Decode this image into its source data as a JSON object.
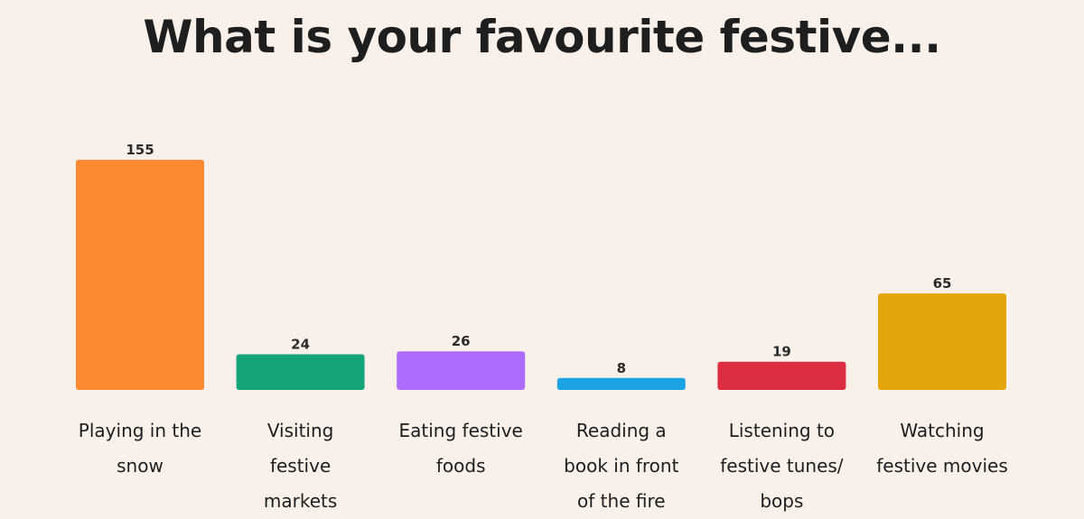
{
  "chart_data": {
    "type": "bar",
    "title": "What is your favourite festive...",
    "categories": [
      "Playing in the snow",
      "Visiting festive markets",
      "Eating festive foods",
      "Reading a book in front of the fire",
      "Listening to festive tunes/ bops",
      "Watching festive movies"
    ],
    "label_lines": [
      [
        "Playing in the",
        "snow"
      ],
      [
        "Visiting",
        "festive",
        "markets"
      ],
      [
        "Eating festive",
        "foods"
      ],
      [
        "Reading a",
        "book in front",
        "of the fire"
      ],
      [
        "Listening to",
        "festive tunes/",
        "bops"
      ],
      [
        "Watching",
        "festive movies"
      ]
    ],
    "values": [
      155,
      24,
      26,
      8,
      19,
      65
    ],
    "colors": [
      "#fb8a32",
      "#14a57a",
      "#ad6cfc",
      "#1ca3e4",
      "#dd2d40",
      "#e2a60a"
    ],
    "xlabel": "",
    "ylabel": "",
    "ylim": [
      0,
      155
    ],
    "grid": false
  }
}
